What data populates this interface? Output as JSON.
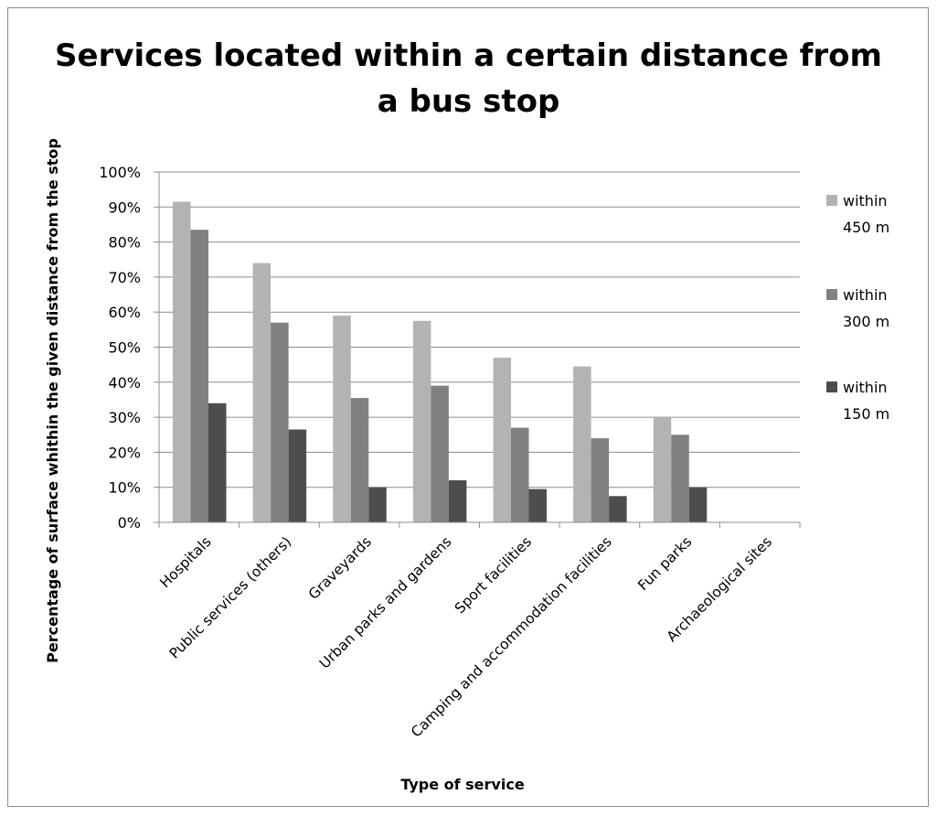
{
  "chart_data": {
    "type": "bar",
    "title": "Services located within a certain distance from\na bus stop",
    "xlabel": "Type of service",
    "ylabel": "Percentage of surface whithin the given distance from the stop",
    "categories": [
      "Hospitals",
      "Public services (others)",
      "Graveyards",
      "Urban parks and gardens",
      "Sport facilities",
      "Camping and accommodation facilities",
      "Fun parks",
      "Archaeological sites"
    ],
    "series": [
      {
        "name": "within 450 m",
        "legend_lines": [
          "within",
          "450 m"
        ],
        "color": "#b3b3b3",
        "values": [
          91.5,
          74,
          59,
          57.5,
          47,
          44.5,
          30,
          0
        ]
      },
      {
        "name": "within 300 m",
        "legend_lines": [
          "within",
          "300 m"
        ],
        "color": "#808080",
        "values": [
          83.5,
          57,
          35.5,
          39,
          27,
          24,
          25,
          0
        ]
      },
      {
        "name": "within 150 m",
        "legend_lines": [
          "within",
          "150 m"
        ],
        "color": "#4d4d4d",
        "values": [
          34,
          26.5,
          10,
          12,
          9.5,
          7.5,
          10,
          0
        ]
      }
    ],
    "yticks": [
      "0%",
      "10%",
      "20%",
      "30%",
      "40%",
      "50%",
      "60%",
      "70%",
      "80%",
      "90%",
      "100%"
    ],
    "ylim": [
      0,
      100
    ],
    "grid": true,
    "legend": "right"
  }
}
